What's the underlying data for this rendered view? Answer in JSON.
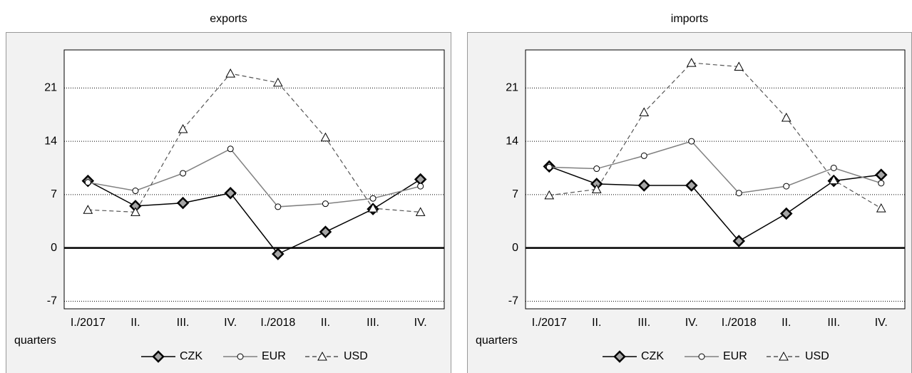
{
  "chart_data": [
    {
      "type": "line",
      "title": "exports",
      "xlabel": "quarters",
      "categories": [
        "I./2017",
        "II.",
        "III.",
        "IV.",
        "I./2018",
        "II.",
        "III.",
        "IV."
      ],
      "ylim": [
        -8,
        26
      ],
      "yticks": [
        -7,
        0,
        7,
        14,
        21
      ],
      "grid": true,
      "legend": "bottom",
      "series": [
        {
          "name": "CZK",
          "color": "#000000",
          "marker": "diamond",
          "linestyle": "solid",
          "values": [
            8.8,
            5.5,
            5.9,
            7.2,
            -0.8,
            2.1,
            5.1,
            9.0
          ]
        },
        {
          "name": "EUR",
          "color": "#808080",
          "marker": "circle",
          "linestyle": "solid",
          "values": [
            8.6,
            7.5,
            9.8,
            13.0,
            5.4,
            5.8,
            6.5,
            8.1
          ]
        },
        {
          "name": "USD",
          "color": "#555555",
          "marker": "triangle",
          "linestyle": "dashed",
          "values": [
            5.0,
            4.7,
            15.6,
            22.9,
            21.7,
            14.5,
            5.2,
            4.7
          ]
        }
      ]
    },
    {
      "type": "line",
      "title": "imports",
      "xlabel": "quarters",
      "categories": [
        "I./2017",
        "II.",
        "III.",
        "IV.",
        "I./2018",
        "II.",
        "III.",
        "IV."
      ],
      "ylim": [
        -8,
        26
      ],
      "yticks": [
        -7,
        0,
        7,
        14,
        21
      ],
      "grid": true,
      "legend": "bottom",
      "series": [
        {
          "name": "CZK",
          "color": "#000000",
          "marker": "diamond",
          "linestyle": "solid",
          "values": [
            10.7,
            8.4,
            8.2,
            8.2,
            0.9,
            4.5,
            8.8,
            9.6
          ]
        },
        {
          "name": "EUR",
          "color": "#808080",
          "marker": "circle",
          "linestyle": "solid",
          "values": [
            10.6,
            10.4,
            12.1,
            14.0,
            7.2,
            8.1,
            10.5,
            8.5
          ]
        },
        {
          "name": "USD",
          "color": "#555555",
          "marker": "triangle",
          "linestyle": "dashed",
          "values": [
            6.9,
            7.7,
            17.8,
            24.3,
            23.8,
            17.1,
            8.9,
            5.2
          ]
        }
      ]
    }
  ]
}
